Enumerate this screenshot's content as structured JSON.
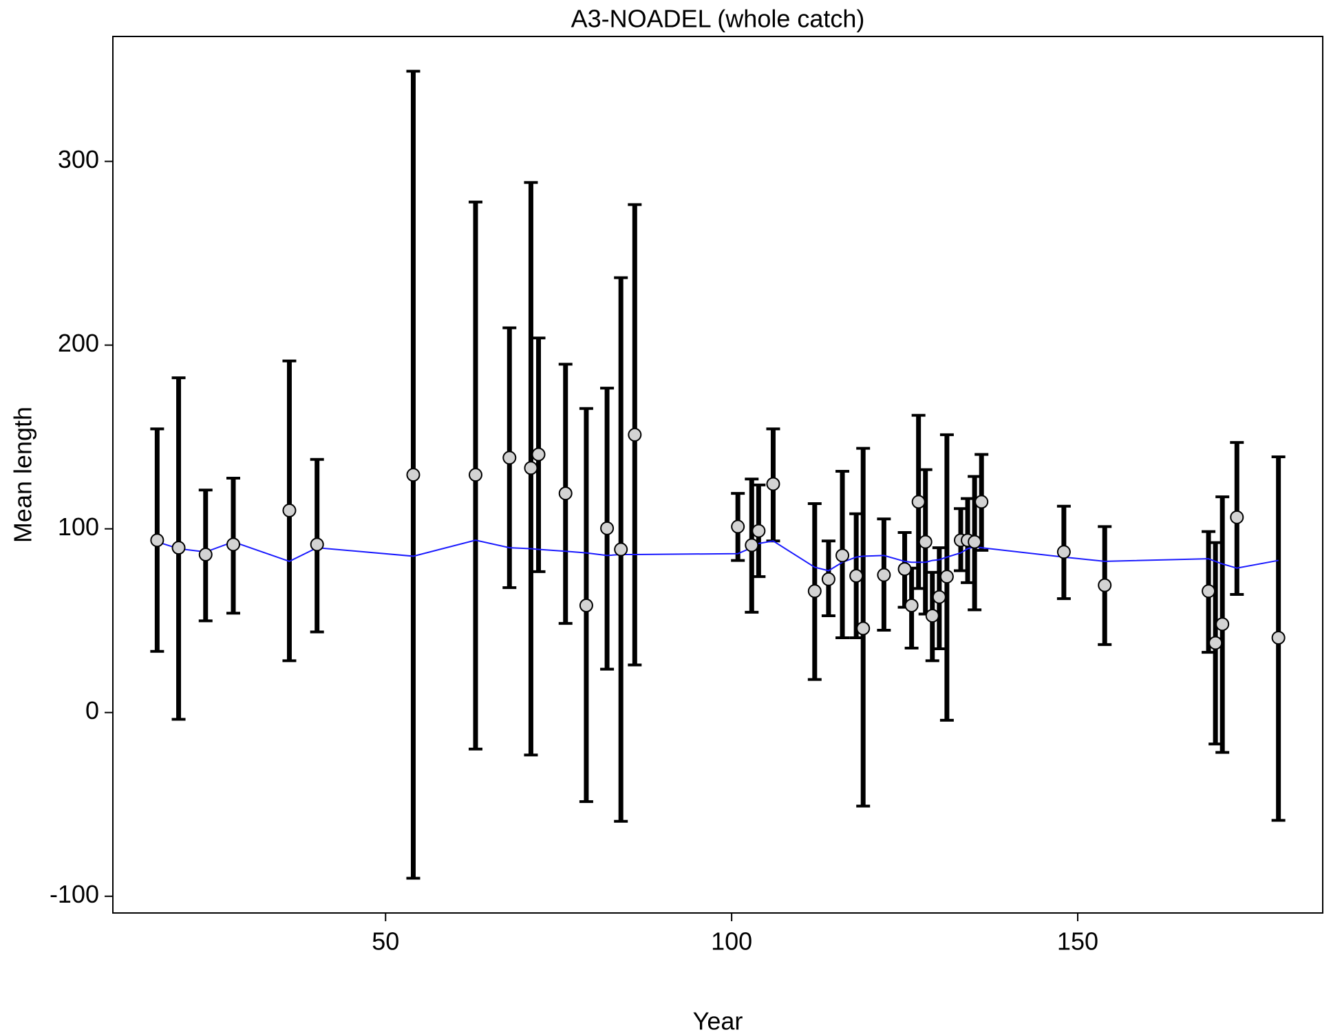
{
  "chart_data": {
    "type": "errorbar",
    "title": "A3-NOADEL (whole catch)",
    "x_label": "Year",
    "y_label": "Mean length",
    "x": [
      17.0,
      20.1,
      24.0,
      28.0,
      36.1,
      40.1,
      54.0,
      63.0,
      67.9,
      71.0,
      72.1,
      76.0,
      79.0,
      82.0,
      84.0,
      86.0,
      100.9,
      102.9,
      103.9,
      106.0,
      112.0,
      114.0,
      116.0,
      118.0,
      119.0,
      122.0,
      125.0,
      126.0,
      127.0,
      128.0,
      129.0,
      130.0,
      131.1,
      133.1,
      134.1,
      135.1,
      136.1,
      148.0,
      153.9,
      168.9,
      169.9,
      170.9,
      173.0,
      179.0
    ],
    "values": [
      93.8,
      89.7,
      86.0,
      91.5,
      110.0,
      91.5,
      129.4,
      129.4,
      138.7,
      133.1,
      140.5,
      119.3,
      58.3,
      100.3,
      88.8,
      151.2,
      101.2,
      91.1,
      98.9,
      124.4,
      66.1,
      72.6,
      85.5,
      74.4,
      45.8,
      74.9,
      78.1,
      58.3,
      114.7,
      92.9,
      52.7,
      62.9,
      74.0,
      93.8,
      93.8,
      92.9,
      114.7,
      87.4,
      69.3,
      66.1,
      37.9,
      48.1,
      106.3,
      40.7
    ],
    "upper": [
      154.4,
      182.2,
      121.1,
      127.6,
      191.4,
      137.8,
      349.1,
      277.9,
      209.4,
      288.5,
      203.9,
      189.6,
      165.5,
      176.6,
      236.7,
      276.5,
      119.3,
      127.1,
      123.9,
      154.4,
      113.7,
      93.4,
      131.3,
      108.2,
      143.8,
      105.4,
      98.0,
      78.6,
      161.8,
      132.2,
      76.3,
      89.7,
      151.2,
      111.0,
      116.5,
      128.5,
      140.5,
      112.3,
      101.2,
      98.5,
      92.5,
      117.4,
      147.0,
      139.2
    ],
    "lower": [
      33.3,
      -3.7,
      49.9,
      54.1,
      28.2,
      43.9,
      -90.2,
      -19.9,
      68.0,
      -23.1,
      76.7,
      48.5,
      -48.5,
      23.6,
      -59.2,
      25.9,
      82.8,
      54.6,
      74.0,
      93.4,
      18.0,
      52.7,
      40.7,
      40.7,
      -50.9,
      44.8,
      57.3,
      35.1,
      67.5,
      53.6,
      28.2,
      34.7,
      -4.2,
      77.2,
      70.7,
      55.9,
      88.3,
      62.0,
      37.0,
      32.8,
      -17.1,
      -21.7,
      64.3,
      -58.7
    ],
    "fit": [
      92.9,
      89.2,
      87.4,
      92.9,
      82.3,
      89.7,
      85.1,
      93.8,
      89.7,
      89.2,
      88.8,
      87.8,
      86.9,
      85.5,
      86.0,
      86.0,
      86.5,
      89.7,
      92.0,
      93.4,
      79.1,
      77.2,
      81.8,
      84.6,
      85.1,
      85.5,
      82.3,
      81.8,
      81.8,
      81.8,
      82.8,
      83.2,
      84.6,
      86.9,
      89.2,
      90.2,
      89.7,
      84.6,
      82.3,
      83.7,
      82.3,
      80.9,
      78.6,
      82.8
    ],
    "point_color": "#d3d3d3",
    "bar_color": "#000000",
    "line_color": "#1a1aff",
    "xlim": [
      10.6,
      185.4
    ],
    "ylim": [
      -109.1,
      368.0
    ],
    "xticks": [
      50,
      100,
      150
    ],
    "yticks": [
      -100,
      0,
      100,
      200,
      300
    ]
  }
}
